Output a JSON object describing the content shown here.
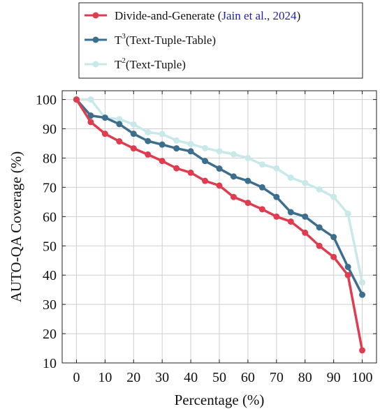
{
  "chart_data": {
    "type": "line",
    "xlabel": "Percentage (%)",
    "ylabel": "AUTO-QA Coverage (%)",
    "xlim": [
      -5,
      105
    ],
    "ylim": [
      10,
      103
    ],
    "xticks": [
      0,
      10,
      20,
      30,
      40,
      50,
      60,
      70,
      80,
      90,
      100
    ],
    "yticks": [
      10,
      20,
      30,
      40,
      50,
      60,
      70,
      80,
      90,
      100
    ],
    "grid": true,
    "legend_position": "top-center, above plot",
    "legend": [
      {
        "series": "Divide-and-Generate",
        "label": "Divide-and-Generate (",
        "cite": "Jain et al., 2024",
        "close": ")"
      },
      {
        "series": "T3",
        "label": "T",
        "sup": "3",
        "after": "(Text-Tuple-Table)"
      },
      {
        "series": "T2",
        "label": "T",
        "sup": "2",
        "after": "(Text-Tuple)"
      }
    ],
    "x": [
      0,
      5,
      10,
      15,
      20,
      25,
      30,
      35,
      40,
      45,
      50,
      55,
      60,
      65,
      70,
      75,
      80,
      85,
      90,
      95,
      100
    ],
    "series": [
      {
        "name": "T2",
        "color": "#c9e8ea",
        "values": [
          100,
          100,
          93.8,
          93.3,
          91.5,
          88.8,
          88.2,
          86.0,
          84.8,
          83.4,
          82.3,
          81.3,
          80.0,
          77.8,
          76.5,
          73.3,
          71.5,
          69.3,
          66.7,
          61.0,
          37.5
        ]
      },
      {
        "name": "T3",
        "color": "#3c6f8e",
        "values": [
          100,
          94.5,
          93.8,
          91.6,
          88.3,
          85.8,
          84.6,
          83.3,
          82.3,
          79.0,
          76.4,
          73.7,
          72.2,
          70.0,
          66.7,
          61.5,
          60.0,
          56.3,
          53.0,
          42.8,
          33.3
        ]
      },
      {
        "name": "Divide-and-Generate",
        "color": "#e03c50",
        "values": [
          100,
          92.3,
          88.3,
          85.7,
          83.3,
          81.2,
          79.0,
          76.5,
          75.0,
          72.2,
          70.6,
          66.7,
          64.7,
          62.5,
          60.0,
          58.3,
          54.5,
          50.0,
          46.2,
          40.0,
          14.3
        ]
      }
    ]
  }
}
